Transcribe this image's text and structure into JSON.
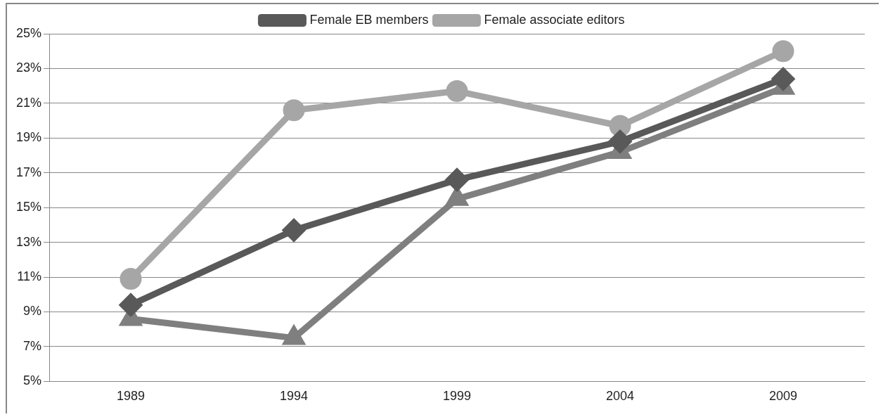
{
  "chart_data": {
    "type": "line",
    "categories": [
      "1989",
      "1994",
      "1999",
      "2004",
      "2009"
    ],
    "series": [
      {
        "name": "Female EB members",
        "color": "#595959",
        "marker": "diamond",
        "values": [
          9.4,
          13.7,
          16.6,
          18.8,
          22.4
        ]
      },
      {
        "name": "Female associate editors",
        "color": "#a6a6a6",
        "marker": "circle",
        "values": [
          10.9,
          20.6,
          21.7,
          19.7,
          24.0
        ]
      },
      {
        "color": "#7f7f7f",
        "marker": "triangle",
        "values": [
          8.6,
          7.5,
          15.5,
          18.2,
          21.9
        ]
      }
    ],
    "ylim": [
      5,
      25
    ],
    "yticks": [
      {
        "value": 5,
        "label": "5%"
      },
      {
        "value": 7,
        "label": "7%"
      },
      {
        "value": 9,
        "label": "9%"
      },
      {
        "value": 11,
        "label": "11%"
      },
      {
        "value": 13,
        "label": "13%"
      },
      {
        "value": 15,
        "label": "15%"
      },
      {
        "value": 17,
        "label": "17%"
      },
      {
        "value": 19,
        "label": "19%"
      },
      {
        "value": 21,
        "label": "21%"
      },
      {
        "value": 23,
        "label": "23%"
      },
      {
        "value": 25,
        "label": "25%"
      }
    ],
    "grid": "y",
    "legend": "top",
    "line_style": "solid"
  }
}
